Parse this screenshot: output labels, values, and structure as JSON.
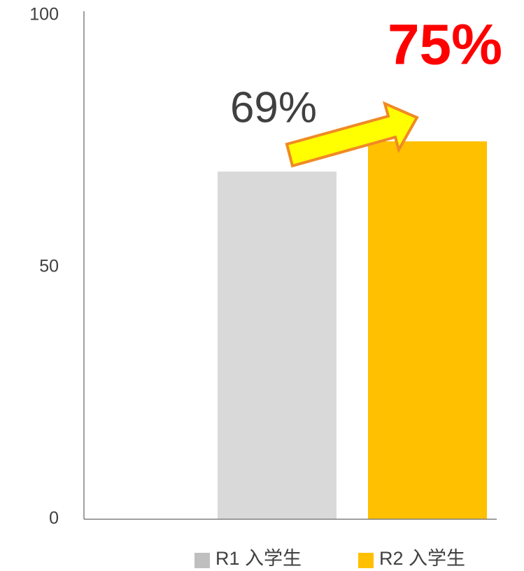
{
  "chart_data": {
    "type": "bar",
    "categories": [
      null
    ],
    "series": [
      {
        "name": "R1 入学生",
        "color": "#d9d9d9",
        "legend_color": "#bfbfbf",
        "values": [
          69
        ],
        "value_labels": [
          "69%"
        ],
        "label_color": "#404040",
        "label_bold": false
      },
      {
        "name": "R2 入学生",
        "color": "#ffc000",
        "legend_color": "#ffc000",
        "values": [
          75
        ],
        "value_labels": [
          "75%"
        ],
        "label_color": "#ff0000",
        "label_bold": true
      }
    ],
    "ylim": [
      0,
      100
    ],
    "yticks": [
      0,
      50,
      100
    ],
    "grid": false,
    "legend": "bottom"
  }
}
